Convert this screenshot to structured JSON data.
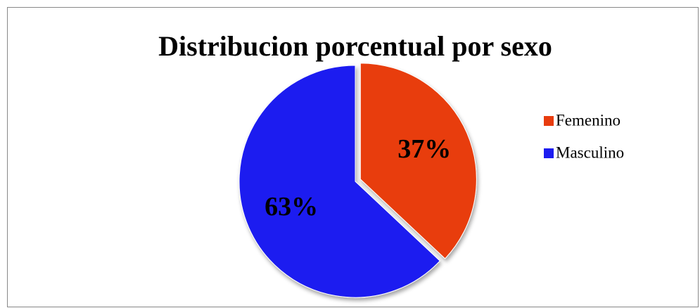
{
  "chart_data": {
    "type": "pie",
    "title": "Distribucion porcentual por sexo",
    "categories": [
      "Femenino",
      "Masculino"
    ],
    "values": [
      37,
      63
    ],
    "value_labels": [
      "37%",
      "63%"
    ],
    "colors": [
      "#e83c0e",
      "#1c1cf0"
    ],
    "legend": "right"
  }
}
